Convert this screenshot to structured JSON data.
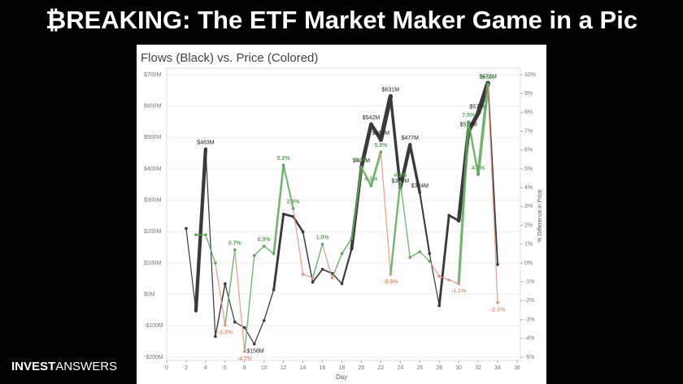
{
  "headline": "₿REAKING: The ETF Market Maker Game in a Pic",
  "brand": {
    "bold": "INVEST",
    "light": "ANSWERS"
  },
  "chart_data": {
    "type": "line",
    "title": "Flows (Black) vs. Price (Colored)",
    "x_label": "Day",
    "y2_label": "% Difference in Price",
    "xlim": [
      0,
      36
    ],
    "xticks": [
      0,
      2,
      4,
      6,
      8,
      10,
      12,
      14,
      16,
      18,
      20,
      22,
      24,
      26,
      28,
      30,
      32,
      34,
      36
    ],
    "ylim": [
      -200,
      700
    ],
    "yticks": [
      {
        "value": -200,
        "label": "-$200M"
      },
      {
        "value": -100,
        "label": "-$100M"
      },
      {
        "value": 0,
        "label": "$0M"
      },
      {
        "value": 100,
        "label": "$100M"
      },
      {
        "value": 200,
        "label": "$200M"
      },
      {
        "value": 300,
        "label": "$300M"
      },
      {
        "value": 400,
        "label": "$400M"
      },
      {
        "value": 500,
        "label": "$500M"
      },
      {
        "value": 600,
        "label": "$600M"
      },
      {
        "value": 700,
        "label": "$700M"
      }
    ],
    "y2lim": [
      -5,
      10
    ],
    "y2ticks": [
      {
        "value": -5,
        "label": "-5%"
      },
      {
        "value": -4,
        "label": "-4%"
      },
      {
        "value": -3,
        "label": "-3%"
      },
      {
        "value": -2,
        "label": "-2%"
      },
      {
        "value": -1,
        "label": "-1%"
      },
      {
        "value": 0,
        "label": "0%"
      },
      {
        "value": 1,
        "label": "1%"
      },
      {
        "value": 2,
        "label": "2%"
      },
      {
        "value": 3,
        "label": "3%"
      },
      {
        "value": 4,
        "label": "4%"
      },
      {
        "value": 5,
        "label": "5%"
      },
      {
        "value": 6,
        "label": "6%"
      },
      {
        "value": 7,
        "label": "7%"
      },
      {
        "value": 8,
        "label": "8%"
      },
      {
        "value": 9,
        "label": "9%"
      },
      {
        "value": 10,
        "label": "10%"
      }
    ],
    "grid": true,
    "series": [
      {
        "name": "Flows",
        "color": "#3a3a3a",
        "x": [
          2,
          3,
          4,
          5,
          6,
          7,
          8,
          9,
          10,
          11,
          12,
          13,
          14,
          15,
          16,
          17,
          18,
          19,
          20,
          21,
          22,
          23,
          24,
          25,
          26,
          27,
          28,
          29,
          30,
          31,
          32,
          33,
          34
        ],
        "values": [
          210,
          -52,
          463,
          -134,
          34,
          -88,
          -106,
          -158,
          -83,
          15,
          256,
          248,
          199,
          39,
          80,
          67,
          34,
          145,
          405,
          542,
          493,
          631,
          340,
          477,
          324,
          130,
          -36,
          252,
          235,
          520,
          577,
          673,
          95
        ],
        "value_labels": [
          null,
          null,
          "$463M",
          null,
          null,
          null,
          null,
          "-$158M",
          null,
          null,
          null,
          null,
          null,
          null,
          null,
          null,
          null,
          null,
          "$405M",
          "$542M",
          "$493M",
          "$631M",
          "$340M",
          "$477M",
          "$324M",
          null,
          null,
          null,
          null,
          "$520M",
          "$577M",
          "$673M",
          null
        ]
      },
      {
        "name": "Price",
        "axis": "y2",
        "color": "#5aa857",
        "negative_color": "#e8927a",
        "x": [
          3,
          4,
          5,
          6,
          7,
          8,
          9,
          10,
          11,
          12,
          13,
          14,
          15,
          16,
          17,
          18,
          19,
          20,
          21,
          22,
          23,
          24,
          25,
          26,
          27,
          28,
          29,
          30,
          31,
          32,
          33,
          34
        ],
        "values": [
          1.5,
          1.5,
          0,
          -3.3,
          0.7,
          -4.7,
          0.4,
          0.9,
          0.5,
          5.2,
          2.9,
          -0.6,
          -0.8,
          1.0,
          -0.8,
          0.5,
          1.3,
          5.1,
          4.1,
          5.9,
          -0.6,
          4.3,
          0.3,
          0.6,
          0.1,
          -0.7,
          -0.9,
          -1.1,
          7.5,
          4.7,
          9.5,
          -2.1
        ],
        "value_labels": [
          null,
          null,
          null,
          "-3.3%",
          "0.7%",
          "-4.7%",
          null,
          "0.9%",
          null,
          "5.2%",
          "2.9%",
          null,
          null,
          "1.0%",
          null,
          null,
          null,
          "5.1%",
          "4.1%",
          "5.9%",
          "-0.6%",
          "4.3%",
          null,
          null,
          null,
          null,
          null,
          "-1.1%",
          "7.5%",
          "4.7%",
          "9.5%",
          "-2.1%"
        ]
      }
    ]
  }
}
